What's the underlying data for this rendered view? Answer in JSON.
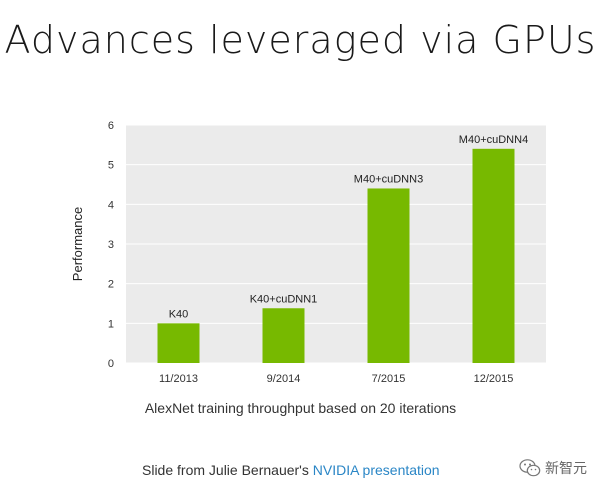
{
  "slide": {
    "title": "Advances leveraged via GPUs",
    "caption": "AlexNet training throughput based on 20 iterations",
    "credit_prefix": "Slide from Julie Bernauer's ",
    "credit_link": "NVIDIA presentation",
    "watermark": "新智元",
    "watermark_icon": "wechat-icon"
  },
  "colors": {
    "bar": "#77b900",
    "plot_bg": "#ebebeb",
    "grid": "#ffffff",
    "link": "#2a86c6"
  },
  "chart_data": {
    "type": "bar",
    "categories": [
      "11/2013",
      "9/2014",
      "7/2015",
      "12/2015"
    ],
    "values": [
      1.0,
      1.38,
      4.4,
      5.4
    ],
    "data_labels": [
      "K40",
      "K40+cuDNN1",
      "M40+cuDNN3",
      "M40+cuDNN4"
    ],
    "title": "",
    "xlabel": "",
    "ylabel": "Performance",
    "ylim": [
      0,
      6
    ],
    "yticks": [
      0,
      1,
      2,
      3,
      4,
      5,
      6
    ],
    "grid": true,
    "legend": "none"
  }
}
